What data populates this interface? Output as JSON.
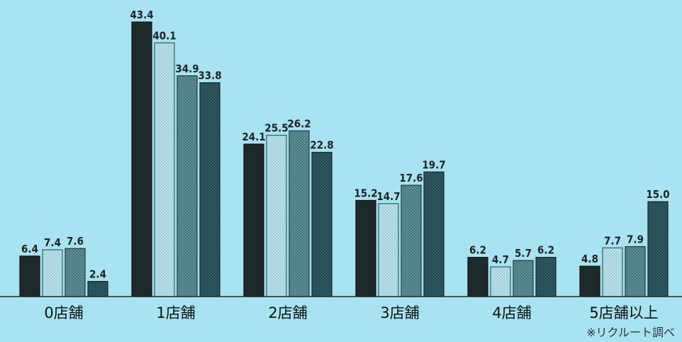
{
  "chart_data": {
    "type": "bar",
    "categories": [
      "0店舗",
      "1店舗",
      "2店舗",
      "3店舗",
      "4店舗",
      "5店舗以上"
    ],
    "series": [
      {
        "values": [
          6.4,
          43.4,
          24.1,
          15.2,
          6.2,
          4.8
        ],
        "color": "#1d2a2a"
      },
      {
        "values": [
          7.4,
          40.1,
          25.5,
          14.7,
          4.7,
          7.7
        ],
        "color": "#c8ecf4"
      },
      {
        "values": [
          7.6,
          34.9,
          26.2,
          17.6,
          5.7,
          7.9
        ],
        "color": "#3f6e73"
      },
      {
        "values": [
          2.4,
          33.8,
          22.8,
          19.7,
          6.2,
          15.0
        ],
        "color": "#1f3f46"
      }
    ],
    "value_labels": [
      [
        "6.4",
        "43.4",
        "24.1",
        "15.2",
        "6.2",
        "4.8"
      ],
      [
        "7.4",
        "40.1",
        "25.5",
        "14.7",
        "4.7",
        "7.7"
      ],
      [
        "7.6",
        "34.9",
        "26.2",
        "17.6",
        "5.7",
        "7.9"
      ],
      [
        "2.4",
        "33.8",
        "22.8",
        "19.7",
        "6.2",
        "15.0"
      ]
    ],
    "title": "",
    "xlabel": "",
    "ylabel": "",
    "ylim": [
      0,
      43.4
    ],
    "grid": false,
    "legend": "none",
    "note": "※リクルート調べ"
  },
  "colors": {
    "background": "#a7e3f1",
    "baseline": "#2a2a2a"
  }
}
